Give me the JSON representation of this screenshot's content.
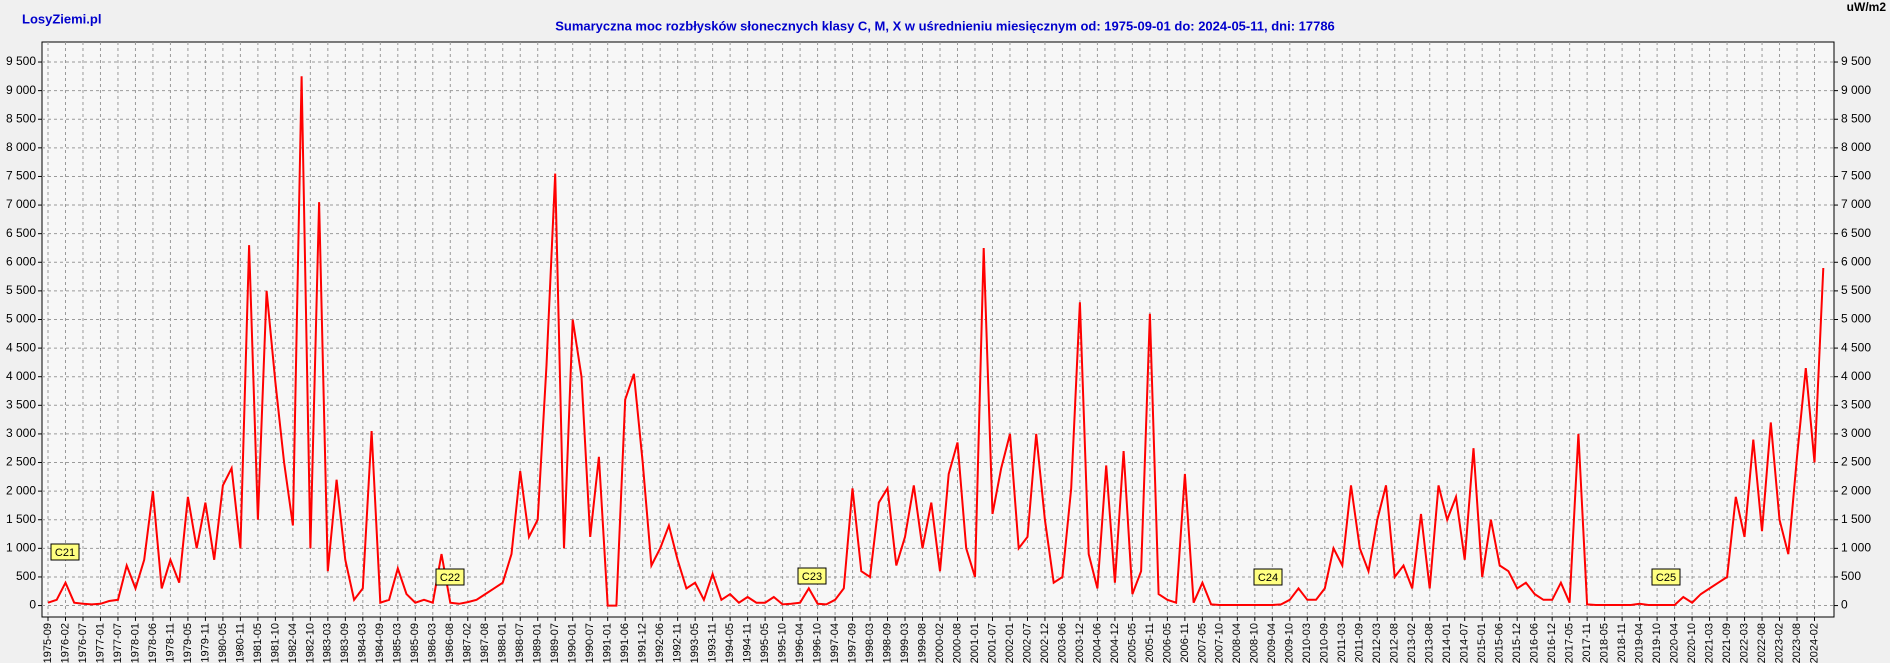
{
  "chart_data": {
    "type": "line",
    "site": "LosyZiemi.pl",
    "title": "Sumaryczna moc rozbłysków słonecznych klasy C, M, X w uśrednieniu miesięcznym od: 1975-09-01 do: 2024-05-11, dni: 17786",
    "y_unit": "uW/m2",
    "annotations": [
      "C21",
      "C22",
      "C23",
      "C24",
      "C25"
    ],
    "categories": [
      "1975-09",
      null,
      "1976-02",
      null,
      "1976-07",
      null,
      "1977-01",
      null,
      "1977-07",
      null,
      "1978-01",
      null,
      "1978-06",
      null,
      "1978-11",
      null,
      "1979-05",
      null,
      "1979-11",
      null,
      "1980-05",
      null,
      "1980-11",
      null,
      "1981-05",
      null,
      "1981-10",
      null,
      "1982-04",
      null,
      "1982-10",
      null,
      "1983-03",
      null,
      "1983-09",
      null,
      "1984-03",
      null,
      "1984-09",
      null,
      "1985-03",
      null,
      "1985-09",
      null,
      "1986-03",
      null,
      "1986-08",
      null,
      "1987-02",
      null,
      "1987-08",
      null,
      "1988-01",
      null,
      "1988-07",
      null,
      "1989-01",
      null,
      "1989-07",
      null,
      "1990-01",
      null,
      "1990-07",
      null,
      "1991-01",
      null,
      "1991-06",
      null,
      "1991-12",
      null,
      "1992-06",
      null,
      "1992-11",
      null,
      "1993-05",
      null,
      "1993-11",
      null,
      "1994-05",
      null,
      "1994-11",
      null,
      "1995-05",
      null,
      "1995-10",
      null,
      "1996-04",
      null,
      "1996-10",
      null,
      "1997-04",
      null,
      "1997-09",
      null,
      "1998-03",
      null,
      "1998-09",
      null,
      "1999-03",
      null,
      "1999-08",
      null,
      "2000-02",
      null,
      "2000-08",
      null,
      "2001-01",
      null,
      "2001-07",
      null,
      "2002-01",
      null,
      "2002-07",
      null,
      "2002-12",
      null,
      "2003-06",
      null,
      "2003-12",
      null,
      "2004-06",
      null,
      "2004-12",
      null,
      "2005-05",
      null,
      "2005-11",
      null,
      "2006-05",
      null,
      "2006-11",
      null,
      "2007-05",
      null,
      "2007-10",
      null,
      "2008-04",
      null,
      "2008-10",
      null,
      "2009-04",
      null,
      "2009-10",
      null,
      "2010-03",
      null,
      "2010-09",
      null,
      "2011-03",
      null,
      "2011-09",
      null,
      "2012-03",
      null,
      "2012-08",
      null,
      "2013-02",
      null,
      "2013-08",
      null,
      "2014-01",
      null,
      "2014-07",
      null,
      "2015-01",
      null,
      "2015-06",
      null,
      "2015-12",
      null,
      "2016-06",
      null,
      "2016-12",
      null,
      "2017-05",
      null,
      "2017-11",
      null,
      "2018-05",
      null,
      "2018-11",
      null,
      "2019-04",
      null,
      "2019-10",
      null,
      "2020-04",
      null,
      "2020-10",
      null,
      "2021-03",
      null,
      "2021-09",
      null,
      "2022-03",
      null,
      "2022-08",
      null,
      "2023-02",
      null,
      "2023-08",
      null,
      "2024-02",
      null
    ],
    "series": [
      {
        "color": "#ff0000",
        "values": [
          50,
          100,
          400,
          50,
          30,
          20,
          30,
          80,
          100,
          700,
          300,
          800,
          2000,
          300,
          800,
          400,
          1900,
          1000,
          1800,
          800,
          2100,
          2400,
          1000,
          6300,
          1500,
          5500,
          3900,
          2500,
          1400,
          9250,
          1000,
          7050,
          600,
          2200,
          800,
          100,
          300,
          3050,
          50,
          100,
          650,
          200,
          50,
          100,
          50,
          900,
          50,
          30,
          60,
          100,
          200,
          300,
          400,
          900,
          2350,
          1200,
          1500,
          4200,
          7550,
          1000,
          5000,
          4000,
          1200,
          2600,
          0,
          0,
          3600,
          4050,
          2500,
          700,
          1000,
          1400,
          800,
          300,
          400,
          100,
          550,
          100,
          200,
          50,
          150,
          50,
          50,
          150,
          20,
          30,
          50,
          300,
          30,
          20,
          100,
          300,
          2050,
          600,
          500,
          1800,
          2050,
          700,
          1200,
          2100,
          1000,
          1800,
          600,
          2300,
          2850,
          1000,
          500,
          6250,
          1600,
          2400,
          3000,
          1000,
          1200,
          3000,
          1500,
          400,
          500,
          2050,
          5300,
          900,
          300,
          2450,
          400,
          2700,
          200,
          600,
          5100,
          200,
          100,
          50,
          2300,
          50,
          400,
          20,
          10,
          10,
          10,
          10,
          10,
          10,
          10,
          20,
          100,
          300,
          100,
          100,
          300,
          1000,
          700,
          2100,
          1000,
          600,
          1500,
          2100,
          500,
          700,
          300,
          1600,
          300,
          2100,
          1500,
          1900,
          800,
          2750,
          500,
          1500,
          700,
          600,
          300,
          400,
          200,
          100,
          100,
          400,
          50,
          3000,
          20,
          10,
          10,
          10,
          10,
          10,
          30,
          10,
          10,
          10,
          10,
          150,
          50,
          200,
          300,
          400,
          500,
          1900,
          1200,
          2900,
          1300,
          3200,
          1500,
          900,
          2600,
          4150,
          2500,
          5900
        ]
      }
    ],
    "ylim": [
      -200,
      9850
    ],
    "yticks": [
      0,
      500,
      {
        "value": 1000,
        "label": "1 000"
      },
      {
        "value": 1500,
        "label": "1 500"
      },
      {
        "value": 2000,
        "label": "2 000"
      },
      {
        "value": 2500,
        "label": "2 500"
      },
      {
        "value": 3000,
        "label": "3 000"
      },
      {
        "value": 3500,
        "label": "3 500"
      },
      {
        "value": 4000,
        "label": "4 000"
      },
      {
        "value": 4500,
        "label": "4 500"
      },
      {
        "value": 5000,
        "label": "5 000"
      },
      {
        "value": 5500,
        "label": "5 500"
      },
      {
        "value": 6000,
        "label": "6 000"
      },
      {
        "value": 6500,
        "label": "6 500"
      },
      {
        "value": 7000,
        "label": "7 000"
      },
      {
        "value": 7500,
        "label": "7 500"
      },
      {
        "value": 8000,
        "label": "8 000"
      },
      {
        "value": 8500,
        "label": "8 500"
      },
      {
        "value": 9000,
        "label": "9 000"
      },
      {
        "value": 9500,
        "label": "9 500"
      }
    ],
    "grid": true
  }
}
